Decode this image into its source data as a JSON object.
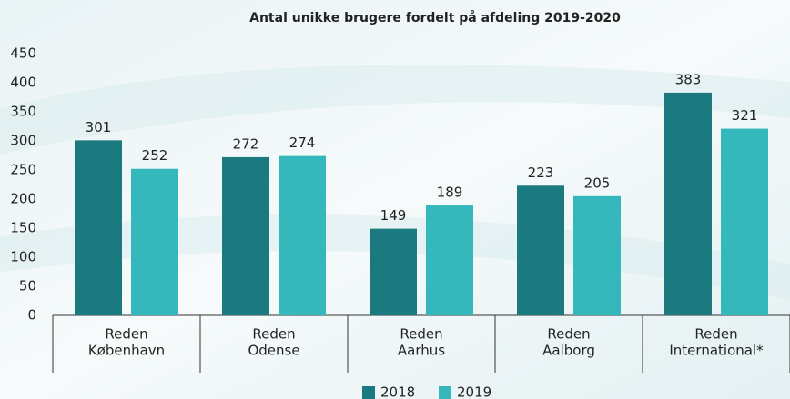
{
  "chart_data": {
    "type": "bar",
    "title": "Antal unikke brugere fordelt på afdeling 2019-2020",
    "categories": [
      [
        "Reden",
        "København"
      ],
      [
        "Reden",
        "Odense"
      ],
      [
        "Reden",
        "Aarhus"
      ],
      [
        "Reden",
        "Aalborg"
      ],
      [
        "Reden",
        "International*"
      ]
    ],
    "series": [
      {
        "name": "2018",
        "color": "#1a7a80",
        "values": [
          301,
          272,
          149,
          223,
          383
        ]
      },
      {
        "name": "2019",
        "color": "#35b8bb",
        "values": [
          252,
          274,
          189,
          205,
          321
        ]
      }
    ],
    "ylim": [
      0,
      450
    ],
    "yticks": [
      0,
      50,
      100,
      150,
      200,
      250,
      300,
      350,
      400,
      450
    ],
    "grid": false,
    "legend": "bottom"
  }
}
